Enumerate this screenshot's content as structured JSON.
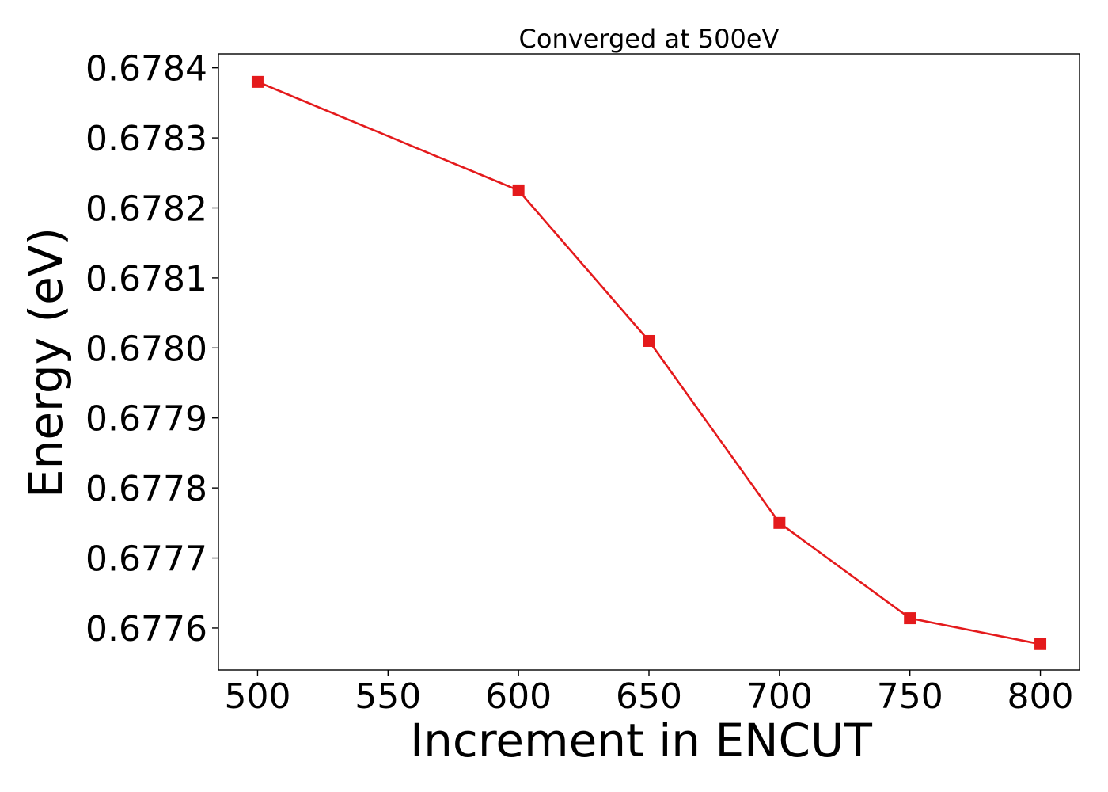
{
  "chart_data": {
    "type": "line",
    "title": "Converged at 500eV",
    "xlabel": "Increment in ENCUT",
    "ylabel": "Energy (eV)",
    "x": [
      500,
      600,
      650,
      700,
      750,
      800
    ],
    "series": [
      {
        "values": [
          0.67838,
          0.678225,
          0.67801,
          0.67775,
          0.677614,
          0.677577
        ],
        "color": "#e41a1c",
        "marker": "square"
      }
    ],
    "xlim": [
      485,
      815
    ],
    "ylim": [
      0.67754,
      0.67842
    ],
    "xticks": [
      500,
      550,
      600,
      650,
      700,
      750,
      800
    ],
    "xtick_labels": [
      "500",
      "550",
      "600",
      "650",
      "700",
      "750",
      "800"
    ],
    "yticks": [
      0.6776,
      0.6777,
      0.6778,
      0.6779,
      0.678,
      0.6781,
      0.6782,
      0.6783,
      0.6784
    ],
    "ytick_labels": [
      "0.6776",
      "0.6777",
      "0.6778",
      "0.6779",
      "0.6780",
      "0.6781",
      "0.6782",
      "0.6783",
      "0.6784"
    ],
    "grid": false,
    "legend": "none"
  }
}
